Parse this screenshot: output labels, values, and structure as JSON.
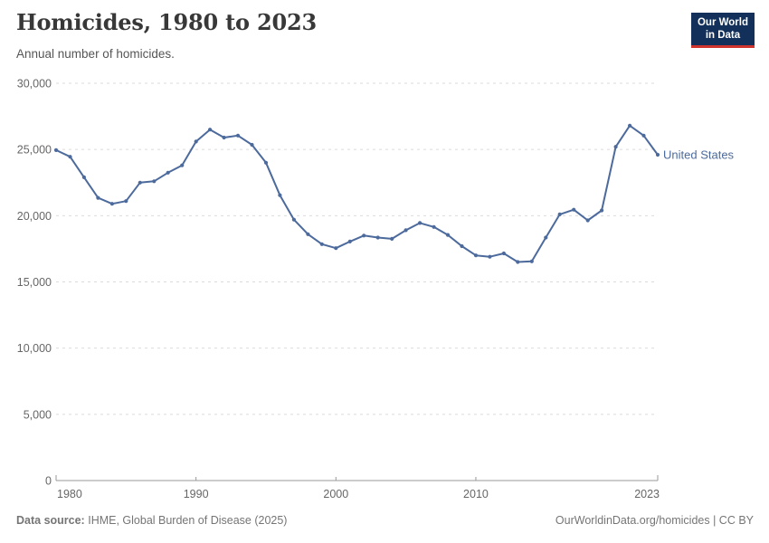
{
  "header": {
    "title": "Homicides, 1980 to 2023",
    "subtitle": "Annual number of homicides."
  },
  "logo": {
    "line1": "Our World",
    "line2": "in Data"
  },
  "chart_data": {
    "type": "line",
    "title": "Homicides, 1980 to 2023",
    "xlabel": "",
    "ylabel": "",
    "ylim": [
      0,
      30000
    ],
    "yticks": [
      0,
      5000,
      10000,
      15000,
      20000,
      25000,
      30000
    ],
    "xticks": [
      1980,
      1990,
      2000,
      2010,
      2023
    ],
    "grid": "horizontal-dashed",
    "legend_position": "end-of-line-label",
    "x": [
      1980,
      1981,
      1982,
      1983,
      1984,
      1985,
      1986,
      1987,
      1988,
      1989,
      1990,
      1991,
      1992,
      1993,
      1994,
      1995,
      1996,
      1997,
      1998,
      1999,
      2000,
      2001,
      2002,
      2003,
      2004,
      2005,
      2006,
      2007,
      2008,
      2009,
      2010,
      2011,
      2012,
      2013,
      2014,
      2015,
      2016,
      2017,
      2018,
      2019,
      2020,
      2021,
      2022,
      2023
    ],
    "series": [
      {
        "name": "United States",
        "color": "#4C6A9C",
        "values": [
          24950,
          24450,
          22900,
          21350,
          20900,
          21100,
          22500,
          22600,
          23250,
          23800,
          25600,
          26500,
          25900,
          26050,
          25350,
          24000,
          21550,
          19700,
          18600,
          17850,
          17550,
          18050,
          18500,
          18350,
          18250,
          18900,
          19450,
          19150,
          18550,
          17700,
          17000,
          16900,
          17150,
          16500,
          16550,
          18350,
          20100,
          20450,
          19650,
          20400,
          25200,
          26800,
          26050,
          24600
        ]
      }
    ]
  },
  "footer": {
    "source_label": "Data source:",
    "source_value": "IHME, Global Burden of Disease (2025)",
    "credit": "OurWorldinData.org/homicides | CC BY"
  },
  "colors": {
    "line": "#4C6A9C",
    "series_label": "#3E5C8F",
    "axis": "#999999",
    "grid": "#DBDBDB",
    "tick_label": "#666666",
    "title": "#383838",
    "subtitle": "#555555",
    "footer": "#757575",
    "logo_bg": "#12305A",
    "logo_red": "#D0342C"
  }
}
